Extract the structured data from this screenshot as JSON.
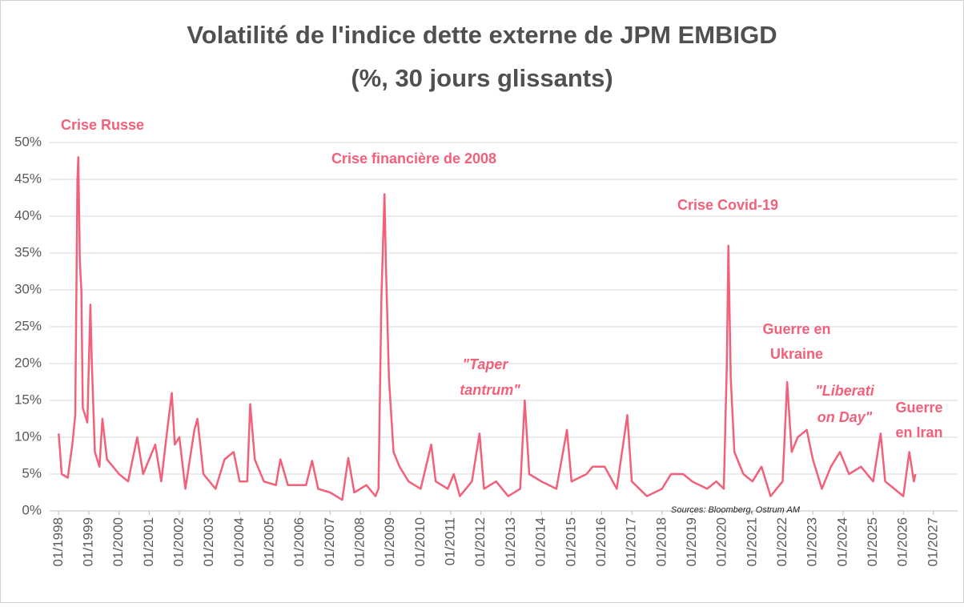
{
  "chart_data": {
    "type": "line",
    "title": "Volatilité de l'indice dette externe de JPM EMBIGD",
    "subtitle": "(%, 30 jours glissants)",
    "source": "Sources: Bloomberg, Ostrum AM",
    "annotations": [
      "Crise Russe",
      "Crise financière de 2008",
      "Crise Covid-19",
      "Guerre en",
      "Ukraine",
      "\"Taper",
      "tantrum\"",
      "\"Liberati",
      "on Day\"",
      "Guerre",
      "en Iran"
    ],
    "grid": true,
    "xlim": [
      1997.7,
      2027.8
    ],
    "ylim": [
      0,
      50
    ],
    "yticks": [
      {
        "value": 0,
        "label": "0%"
      },
      {
        "value": 5,
        "label": "5%"
      },
      {
        "value": 10,
        "label": "10%"
      },
      {
        "value": 15,
        "label": "15%"
      },
      {
        "value": 20,
        "label": "20%"
      },
      {
        "value": 25,
        "label": "25%"
      },
      {
        "value": 30,
        "label": "30%"
      },
      {
        "value": 35,
        "label": "35%"
      },
      {
        "value": 40,
        "label": "40%"
      },
      {
        "value": 45,
        "label": "45%"
      },
      {
        "value": 50,
        "label": "50%"
      }
    ],
    "xticks": [
      {
        "value": 1998,
        "label": "01/1998"
      },
      {
        "value": 1999,
        "label": "01/1999"
      },
      {
        "value": 2000,
        "label": "01/2000"
      },
      {
        "value": 2001,
        "label": "01/2001"
      },
      {
        "value": 2002,
        "label": "01/2002"
      },
      {
        "value": 2003,
        "label": "01/2003"
      },
      {
        "value": 2004,
        "label": "01/2004"
      },
      {
        "value": 2005,
        "label": "01/2005"
      },
      {
        "value": 2006,
        "label": "01/2006"
      },
      {
        "value": 2007,
        "label": "01/2007"
      },
      {
        "value": 2008,
        "label": "01/2008"
      },
      {
        "value": 2009,
        "label": "01/2009"
      },
      {
        "value": 2010,
        "label": "01/2010"
      },
      {
        "value": 2011,
        "label": "01/2011"
      },
      {
        "value": 2012,
        "label": "01/2012"
      },
      {
        "value": 2013,
        "label": "01/2013"
      },
      {
        "value": 2014,
        "label": "01/2014"
      },
      {
        "value": 2015,
        "label": "01/2015"
      },
      {
        "value": 2016,
        "label": "01/2016"
      },
      {
        "value": 2017,
        "label": "01/2017"
      },
      {
        "value": 2018,
        "label": "01/2018"
      },
      {
        "value": 2019,
        "label": "01/2019"
      },
      {
        "value": 2020,
        "label": "01/2020"
      },
      {
        "value": 2021,
        "label": "01/2021"
      },
      {
        "value": 2022,
        "label": "01/2022"
      },
      {
        "value": 2023,
        "label": "01/2023"
      },
      {
        "value": 2024,
        "label": "01/2024"
      },
      {
        "value": 2025,
        "label": "01/2025"
      },
      {
        "value": 2026,
        "label": "01/2026"
      },
      {
        "value": 2027,
        "label": "01/2027"
      }
    ],
    "x": [
      1998.0,
      1998.1,
      1998.3,
      1998.45,
      1998.55,
      1998.62,
      1998.65,
      1998.7,
      1998.75,
      1998.8,
      1998.95,
      1999.05,
      1999.1,
      1999.2,
      1999.35,
      1999.45,
      1999.6,
      2000.0,
      2000.3,
      2000.6,
      2000.8,
      2001.0,
      2001.2,
      2001.4,
      2001.6,
      2001.75,
      2001.85,
      2002.0,
      2002.2,
      2002.5,
      2002.6,
      2002.8,
      2003.2,
      2003.5,
      2003.8,
      2004.0,
      2004.25,
      2004.35,
      2004.5,
      2004.8,
      2005.2,
      2005.35,
      2005.6,
      2006.2,
      2006.4,
      2006.6,
      2007.0,
      2007.4,
      2007.6,
      2007.8,
      2008.2,
      2008.5,
      2008.6,
      2008.7,
      2008.8,
      2008.85,
      2008.95,
      2009.1,
      2009.3,
      2009.6,
      2010.0,
      2010.35,
      2010.5,
      2010.9,
      2011.1,
      2011.3,
      2011.7,
      2011.95,
      2012.1,
      2012.5,
      2012.9,
      2013.3,
      2013.45,
      2013.6,
      2014.0,
      2014.5,
      2014.85,
      2015.0,
      2015.5,
      2015.7,
      2016.1,
      2016.5,
      2016.85,
      2017.0,
      2017.5,
      2018.0,
      2018.3,
      2018.7,
      2019.0,
      2019.5,
      2019.8,
      2020.05,
      2020.15,
      2020.2,
      2020.28,
      2020.4,
      2020.7,
      2021.0,
      2021.3,
      2021.6,
      2022.0,
      2022.15,
      2022.3,
      2022.5,
      2022.8,
      2023.0,
      2023.3,
      2023.6,
      2023.9,
      2024.2,
      2024.6,
      2025.0,
      2025.25,
      2025.4,
      2025.7,
      2026.0,
      2026.2,
      2026.35,
      2026.4
    ],
    "series": [
      {
        "color": "#f2607a",
        "values": [
          10.5,
          5,
          4.5,
          9,
          13,
          45,
          48,
          34,
          30,
          14,
          12,
          28,
          20,
          8,
          6,
          12.5,
          7,
          5,
          4,
          10,
          5,
          7,
          9,
          4,
          11,
          16,
          9,
          10,
          3,
          11,
          12.5,
          5,
          3,
          7,
          8,
          4,
          4,
          14.5,
          7,
          4,
          3.5,
          7,
          3.5,
          3.5,
          6.8,
          3,
          2.5,
          1.5,
          7.2,
          2.5,
          3.5,
          2,
          3,
          29,
          43,
          33,
          18,
          8,
          6,
          4,
          3,
          9,
          4,
          3,
          5,
          2,
          4,
          10.5,
          3,
          4,
          2,
          3,
          15,
          5,
          4,
          3,
          11,
          4,
          5,
          6,
          6,
          3,
          13,
          4,
          2,
          3,
          5,
          5,
          4,
          3,
          4,
          3,
          20,
          36,
          18,
          8,
          5,
          4,
          6,
          2,
          4,
          17.5,
          8,
          10,
          11,
          7,
          3,
          6,
          8,
          5,
          6,
          4,
          10.5,
          4,
          3,
          2,
          8,
          4,
          5
        ]
      }
    ]
  }
}
